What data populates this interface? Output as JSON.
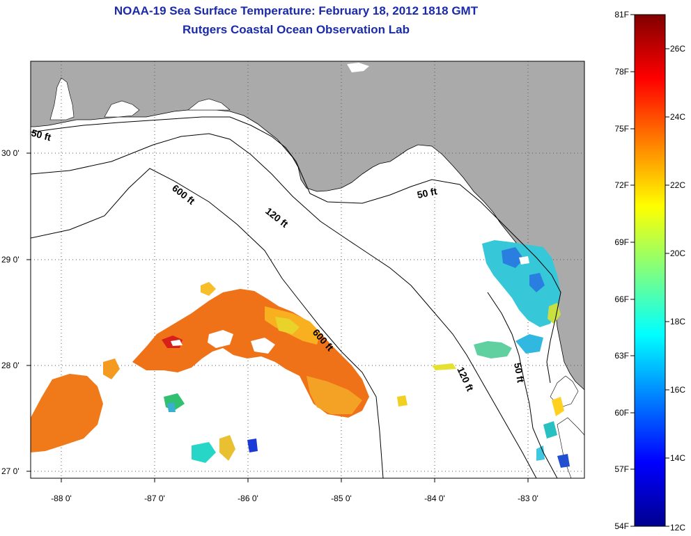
{
  "title": "NOAA-19 Sea Surface Temperature:  February 18, 2012 1818 GMT",
  "subtitle": "Rutgers Coastal Ocean Observation Lab",
  "map": {
    "lon_ticks": [
      "-88 0'",
      "-87 0'",
      "-86 0'",
      "-85 0'",
      "-84 0'",
      "-83 0'"
    ],
    "lat_ticks": [
      "30 0'",
      "29 0'",
      "28 0'",
      "27 0'"
    ],
    "contours": [
      {
        "label": "50 ft"
      },
      {
        "label": "600 ft"
      },
      {
        "label": "120 ft"
      },
      {
        "label": "50 ft"
      },
      {
        "label": "600 ft"
      },
      {
        "label": "120 ft"
      },
      {
        "label": "50 ft"
      }
    ],
    "colors": {
      "land": "#aaaaaa",
      "ocean": "#ffffff",
      "grid": "#555555"
    }
  },
  "colorbar": {
    "f_labels": [
      "81F",
      "78F",
      "75F",
      "72F",
      "69F",
      "66F",
      "63F",
      "60F",
      "57F",
      "54F"
    ],
    "c_labels": [
      "26C",
      "24C",
      "22C",
      "20C",
      "18C",
      "16C",
      "14C",
      "12C"
    ]
  }
}
